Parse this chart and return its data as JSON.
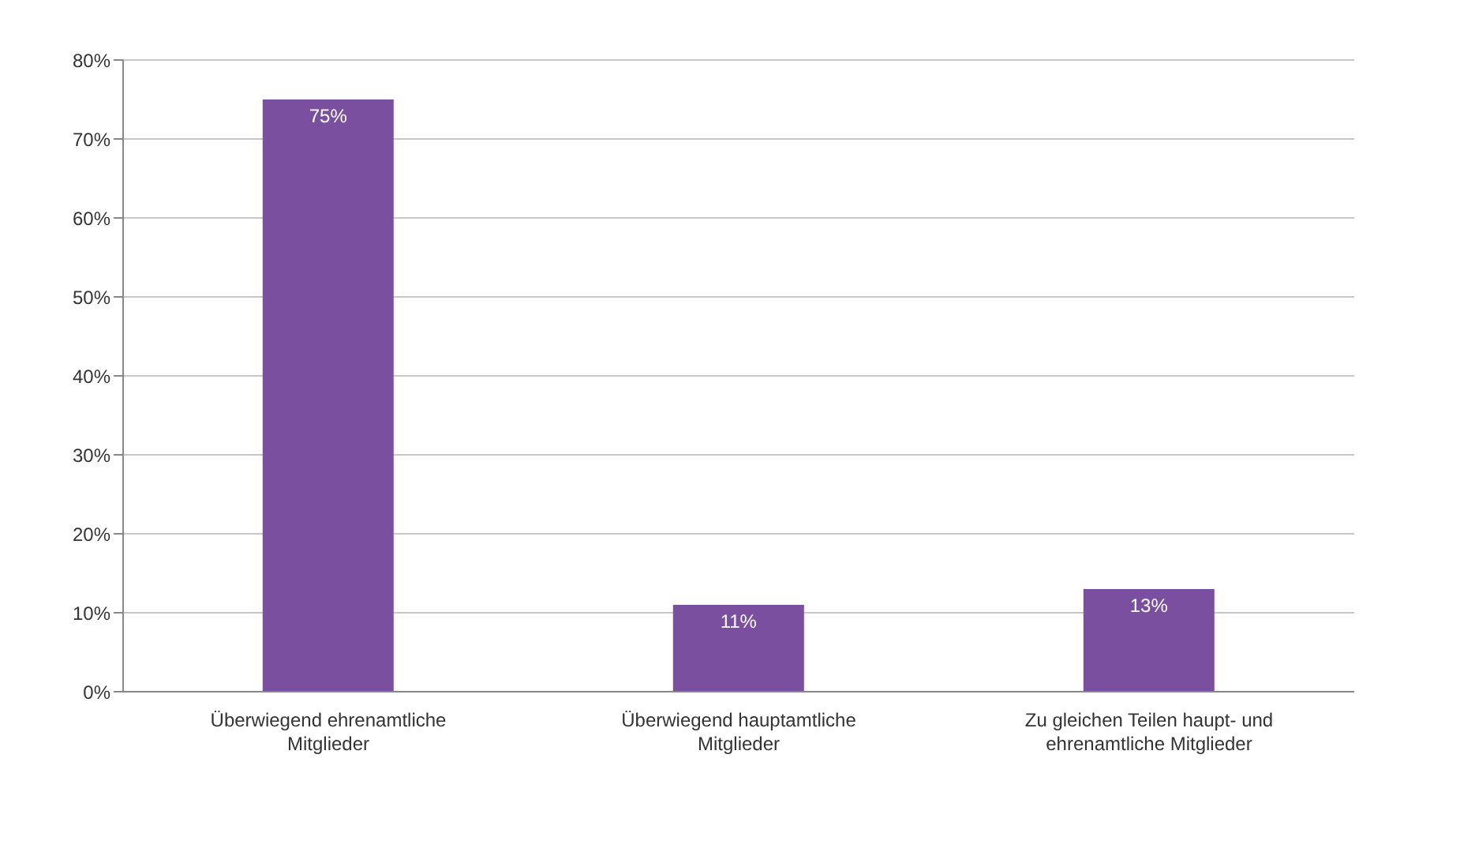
{
  "chart_data": {
    "type": "bar",
    "categories": [
      "Überwiegend ehrenamtliche Mitglieder",
      "Überwiegend hauptamtliche Mitglieder",
      "Zu gleichen Teilen haupt- und ehrenamtliche Mitglieder"
    ],
    "values": [
      75,
      11,
      13
    ],
    "value_labels": [
      "75%",
      "11%",
      "13%"
    ],
    "color": "#7a4f9f",
    "ylim": [
      0,
      80
    ],
    "yticks": [
      {
        "value": 0,
        "label": "0%"
      },
      {
        "value": 10,
        "label": "10%"
      },
      {
        "value": 20,
        "label": "20%"
      },
      {
        "value": 30,
        "label": "30%"
      },
      {
        "value": 40,
        "label": "40%"
      },
      {
        "value": 50,
        "label": "50%"
      },
      {
        "value": 60,
        "label": "60%"
      },
      {
        "value": 70,
        "label": "70%"
      },
      {
        "value": 80,
        "label": "80%"
      }
    ],
    "grid": "y"
  }
}
